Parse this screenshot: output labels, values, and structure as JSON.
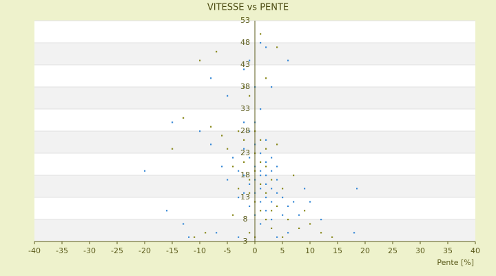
{
  "chart_data": {
    "type": "scatter",
    "title": "VITESSE vs PENTE",
    "x_label": "Pente [%]",
    "xlim": [
      -40,
      40
    ],
    "xticks": [
      -40,
      -35,
      -30,
      -25,
      -20,
      -15,
      -10,
      -5,
      0,
      5,
      10,
      15,
      20,
      25,
      30,
      35,
      40
    ],
    "ylim": [
      3,
      53
    ],
    "yticks": [
      3,
      8,
      13,
      18,
      23,
      28,
      33,
      38,
      43,
      48,
      53
    ],
    "grid": true,
    "series": [
      {
        "color": "#3a8ad6",
        "x": [
          0,
          1,
          2,
          -1,
          3,
          -2,
          4,
          1,
          2,
          -3,
          0,
          5,
          3,
          -1,
          1,
          2,
          4,
          -2,
          6,
          0,
          1,
          -4,
          3,
          5,
          2,
          -1,
          7,
          8,
          -5,
          0,
          1,
          -2,
          -6,
          -8,
          -10,
          -15,
          -20,
          -16,
          -13,
          -12,
          18.5,
          18,
          12,
          10,
          6,
          4,
          -3,
          -7,
          2,
          1,
          -1,
          0,
          -2,
          -5,
          3,
          6,
          -8,
          9,
          0,
          1,
          2,
          3,
          -1,
          4,
          -3,
          0,
          2,
          1,
          -2,
          3
        ],
        "y": [
          20,
          18,
          16,
          22,
          15,
          24,
          14,
          12,
          21,
          19,
          25,
          13,
          19,
          16,
          23,
          10,
          17,
          14,
          11,
          9,
          7,
          22,
          8,
          9,
          26,
          28,
          12,
          9,
          17,
          30,
          33,
          30,
          20,
          25,
          28,
          30,
          19,
          10,
          7,
          4,
          15,
          5,
          8,
          12,
          5,
          4,
          4,
          5,
          47,
          48,
          44,
          38,
          42,
          36,
          38,
          44,
          40,
          15,
          14,
          19,
          18,
          22,
          11,
          20,
          13,
          17,
          13,
          15,
          18,
          12
        ]
      },
      {
        "color": "#8a8a1e",
        "x": [
          0,
          -1,
          2,
          1,
          -2,
          3,
          -3,
          4,
          0,
          -4,
          5,
          1,
          -5,
          2,
          6,
          -6,
          3,
          8,
          10,
          12,
          14,
          -9,
          -11,
          -13,
          -15,
          -10,
          -7,
          -1,
          2,
          4,
          -2,
          1,
          0,
          7,
          -8,
          9,
          -1,
          0,
          5,
          -4,
          1,
          2,
          -3,
          3,
          4,
          0,
          -1,
          2,
          1,
          -2
        ],
        "y": [
          19,
          17,
          14,
          21,
          26,
          17,
          15,
          11,
          23,
          20,
          15,
          10,
          24,
          8,
          8,
          27,
          6,
          6,
          7,
          5,
          4,
          5,
          4,
          31,
          24,
          44,
          46,
          36,
          40,
          47,
          38,
          50,
          28,
          18,
          29,
          10,
          5,
          4,
          4,
          9,
          26,
          24,
          28,
          10,
          25,
          12,
          14,
          20,
          16,
          21
        ]
      }
    ]
  }
}
